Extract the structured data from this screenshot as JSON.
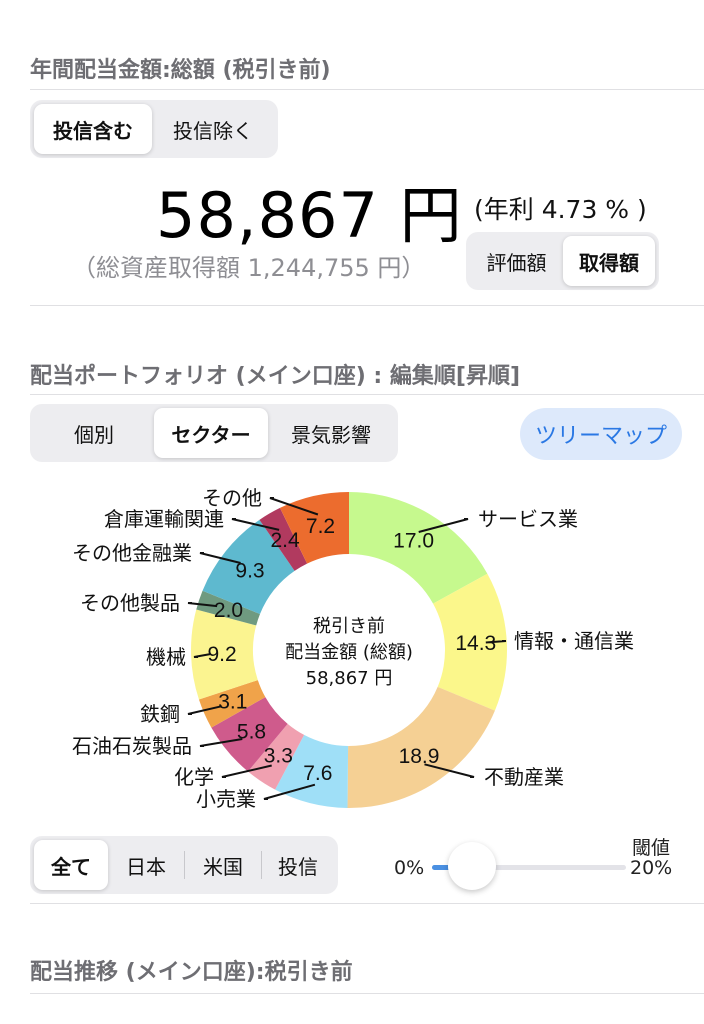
{
  "dividend": {
    "section_title": "年間配当金額:総額 (税引き前)",
    "fund_toggle": [
      "投信含む",
      "投信除く"
    ],
    "fund_toggle_active": 0,
    "amount": "58,867 円",
    "yield": "(年利 4.73 % )",
    "total_assets": "（総資産取得額 1,244,755 円）",
    "basis_toggle": [
      "評価額",
      "取得額"
    ],
    "basis_toggle_active": 1
  },
  "portfolio": {
    "section_title": "配当ポートフォリオ (メイン口座) : 編集順[昇順]",
    "view_tabs": [
      "個別",
      "セクター",
      "景気影響"
    ],
    "view_tabs_active": 1,
    "treemap_label": "ツリーマップ",
    "center_lines": [
      "税引き前",
      "配当金額 (総額)",
      "58,867 円"
    ],
    "market_tabs": [
      "全て",
      "日本",
      "米国",
      "投信"
    ],
    "market_tabs_active": 0,
    "threshold": {
      "title": "閾値",
      "min_label": "0%",
      "max_label": "20%",
      "value_fraction": 0.0
    }
  },
  "chart_data": {
    "type": "pie",
    "donut": true,
    "slices": [
      {
        "label": "サービス業",
        "value": 17.0,
        "color": "#c6f98e"
      },
      {
        "label": "情報・通信業",
        "value": 14.3,
        "color": "#fbf78b"
      },
      {
        "label": "不動産業",
        "value": 18.9,
        "color": "#f5d094"
      },
      {
        "label": "小売業",
        "value": 7.6,
        "color": "#9fdff7"
      },
      {
        "label": "化学",
        "value": 3.3,
        "color": "#f0a0b0"
      },
      {
        "label": "石油石炭製品",
        "value": 5.8,
        "color": "#cf5b8c"
      },
      {
        "label": "鉄鋼",
        "value": 3.1,
        "color": "#f0a34a"
      },
      {
        "label": "機械",
        "value": 9.2,
        "color": "#fbf490"
      },
      {
        "label": "その他製品",
        "value": 2.0,
        "color": "#6f9a80"
      },
      {
        "label": "その他金融業",
        "value": 9.3,
        "color": "#5eb9cf"
      },
      {
        "label": "倉庫運輸関連",
        "value": 2.4,
        "color": "#b13a5f"
      },
      {
        "label": "その他",
        "value": 7.2,
        "color": "#ec6c2e"
      }
    ]
  },
  "history": {
    "section_title": "配当推移 (メイン口座):税引き前"
  }
}
